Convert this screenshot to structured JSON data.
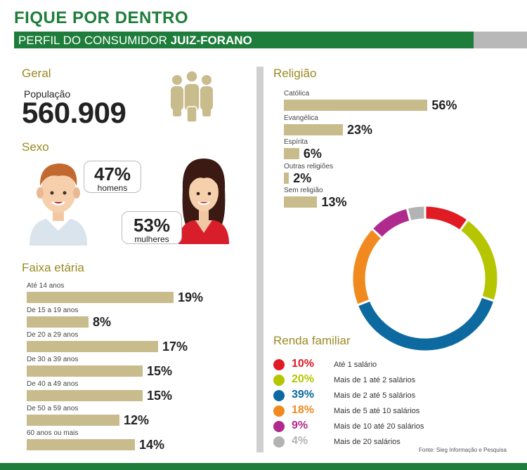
{
  "header": {
    "title": "FIQUE POR DENTRO",
    "subtitle_prefix": "PERFIL DO CONSUMIDOR ",
    "subtitle_bold": "JUIZ-FORANO"
  },
  "geral": {
    "heading": "Geral",
    "population_label": "População",
    "population_value": "560.909"
  },
  "sexo": {
    "heading": "Sexo",
    "men_pct": "47%",
    "men_label": "homens",
    "women_pct": "53%",
    "women_label": "mulheres"
  },
  "icons": [
    "people-group-icon",
    "man-avatar-icon",
    "woman-avatar-icon"
  ],
  "colors": {
    "green": "#1e7d3a",
    "gold": "#9a8a23",
    "bar": "#c8bb8c",
    "slice_1": "#e01b24",
    "slice_2": "#b5c600",
    "slice_3": "#0d6aa0",
    "slice_4": "#f08a1e",
    "slice_5": "#b02a8e",
    "slice_6": "#b3b3b3"
  },
  "chart_data": [
    {
      "type": "bar",
      "title": "Faixa etária",
      "categories": [
        "Até 14 anos",
        "De 15 a 19 anos",
        "De 20 a 29 anos",
        "De 30 a 39 anos",
        "De 40 a 49 anos",
        "De 50 a 59 anos",
        "60 anos ou mais"
      ],
      "values": [
        19,
        8,
        17,
        15,
        15,
        12,
        14
      ],
      "labels": [
        "19%",
        "8%",
        "17%",
        "15%",
        "15%",
        "12%",
        "14%"
      ]
    },
    {
      "type": "bar",
      "title": "Religião",
      "categories": [
        "Católica",
        "Evangélica",
        "Espírita",
        "Outras religiões",
        "Sem religião"
      ],
      "values": [
        56,
        23,
        6,
        2,
        13
      ],
      "labels": [
        "56%",
        "23%",
        "6%",
        "2%",
        "13%"
      ]
    },
    {
      "type": "pie",
      "title": "Renda familiar",
      "categories": [
        "Até 1 salário",
        "Mais de 1 até 2 salários",
        "Mais de 2 até 5 salários",
        "Mais de 5 até 10 salários",
        "Mais de 10 até 20 salários",
        "Mais de 20 salários"
      ],
      "values": [
        10,
        20,
        39,
        18,
        9,
        4
      ],
      "labels": [
        "10%",
        "20%",
        "39%",
        "18%",
        "9%",
        "4%"
      ],
      "colors": [
        "#e01b24",
        "#b5c600",
        "#0d6aa0",
        "#f08a1e",
        "#b02a8e",
        "#b3b3b3"
      ]
    }
  ],
  "source": "Fonte: Sieg Informação e Pesquisa"
}
